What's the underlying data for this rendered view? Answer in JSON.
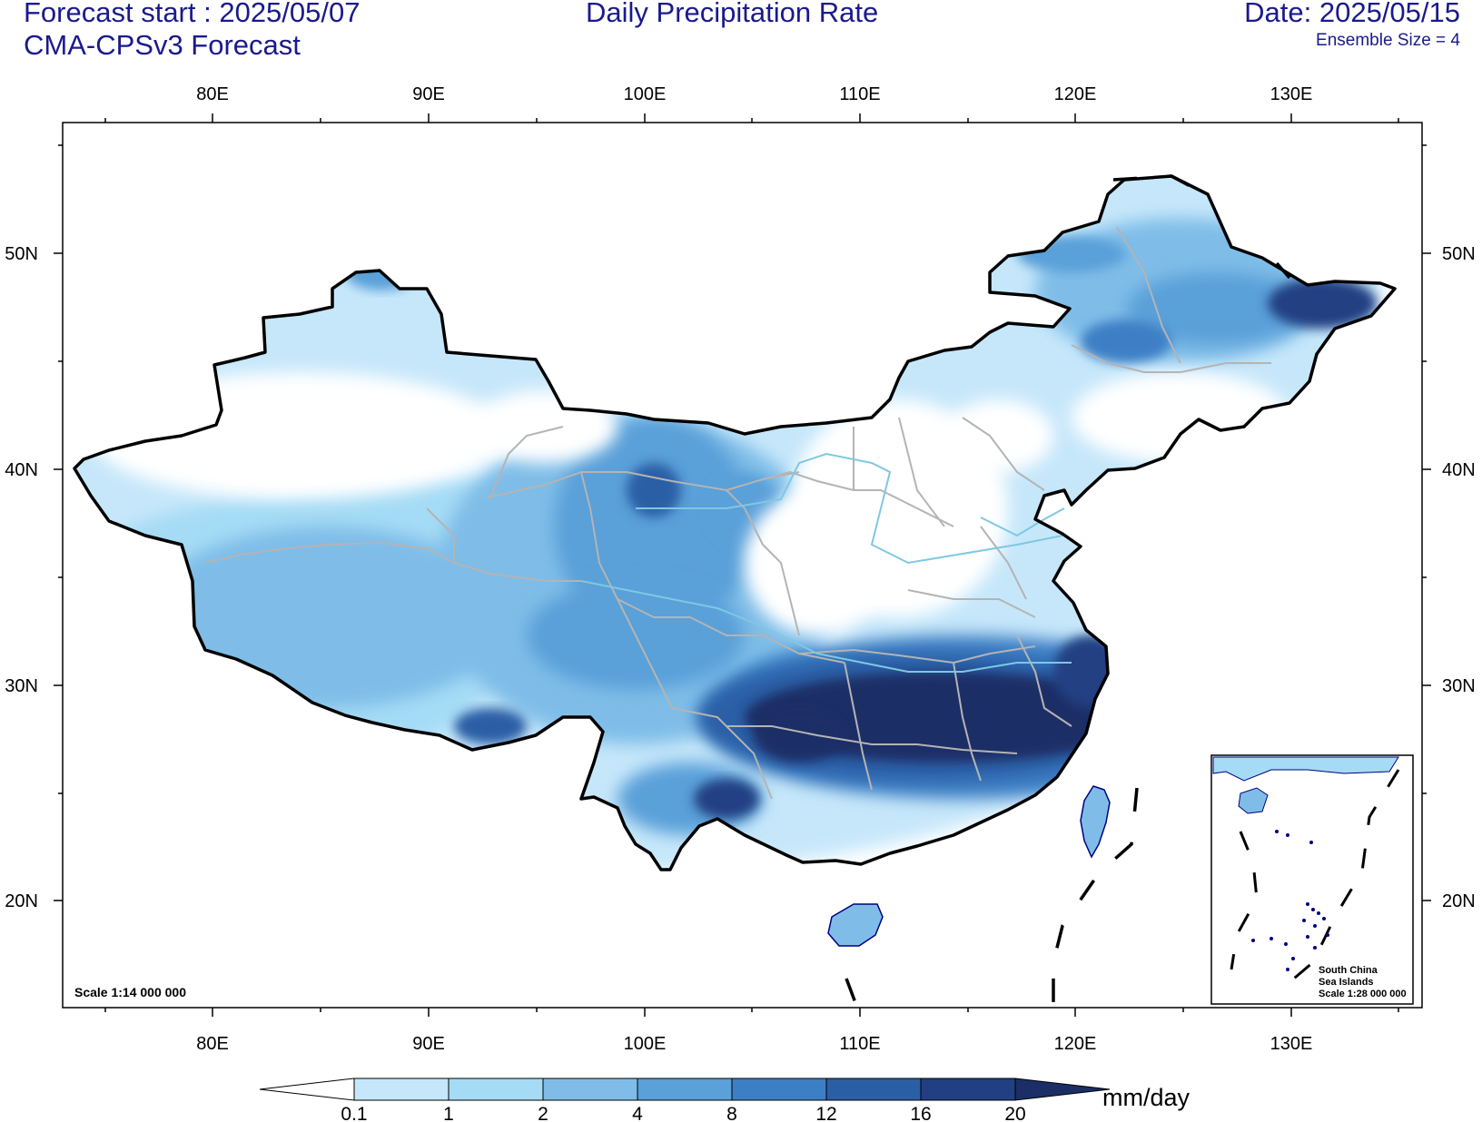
{
  "header": {
    "forecast_start": "Forecast start : 2025/05/07",
    "model": "CMA-CPSv3 Forecast",
    "title": "Daily Precipitation Rate",
    "date": "Date: 2025/05/15",
    "ensemble": "Ensemble Size = 4"
  },
  "map": {
    "lon_ticks": [
      "80E",
      "90E",
      "100E",
      "110E",
      "120E",
      "130E"
    ],
    "lat_ticks": [
      "50N",
      "40N",
      "30N",
      "20N"
    ],
    "scale_main": "Scale 1:14 000 000",
    "inset": {
      "line1": "South China",
      "line2": "Sea Islands",
      "line3": "Scale 1:28 000 000"
    },
    "colors": {
      "border": "#000000",
      "province": "#b4b4b4",
      "river": "#7ec8e3",
      "coast": "#000080"
    }
  },
  "colorbar": {
    "unit": "mm/day",
    "levels": [
      "0.1",
      "1",
      "2",
      "4",
      "8",
      "12",
      "16",
      "20"
    ],
    "colors": [
      "#ffffff",
      "#c6e7fa",
      "#a5dbf5",
      "#7fbde8",
      "#5aa0d9",
      "#3c7fc5",
      "#2a5fa6",
      "#213f82",
      "#1b2f66"
    ]
  }
}
